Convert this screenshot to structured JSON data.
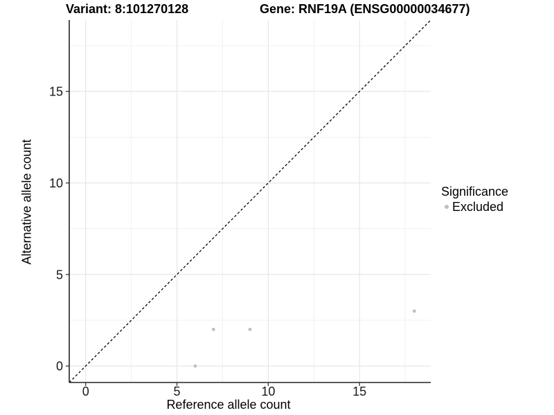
{
  "chart_data": {
    "type": "scatter",
    "title_left": "Variant: 8:101270128",
    "title_right": "Gene: RNF19A (ENSG00000034677)",
    "xlabel": "Reference allele count",
    "ylabel": "Alternative allele count",
    "xlim": [
      -0.9,
      18.9
    ],
    "ylim": [
      -0.9,
      18.9
    ],
    "xticks": [
      0,
      5,
      10,
      15
    ],
    "yticks": [
      0,
      5,
      10,
      15
    ],
    "xticks_minor": [
      2.5,
      7.5,
      12.5,
      17.5
    ],
    "yticks_minor": [
      2.5,
      7.5,
      12.5,
      17.5
    ],
    "grid": true,
    "identity_line": {
      "from": [
        -0.9,
        -0.9
      ],
      "to": [
        18.9,
        18.9
      ],
      "style": "dashed",
      "color": "#000000"
    },
    "series": [
      {
        "name": "Excluded",
        "color": "#bfbfbf",
        "points": [
          [
            6,
            0
          ],
          [
            7,
            2
          ],
          [
            9,
            2
          ],
          [
            18,
            3
          ]
        ]
      }
    ],
    "legend": {
      "title": "Significance",
      "position": "right",
      "items": [
        {
          "label": "Excluded",
          "color": "#bfbfbf"
        }
      ]
    }
  },
  "colors": {
    "background": "#ffffff",
    "grid_major": "#e4e4e4",
    "grid_minor": "#efefef",
    "axis_line": "#222222",
    "tick_mark": "#333333",
    "tick_label": "#1a1a1a",
    "point": "#bfbfbf"
  }
}
